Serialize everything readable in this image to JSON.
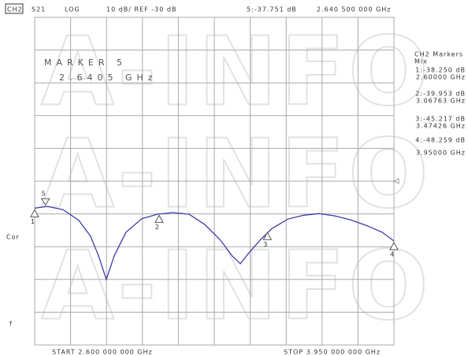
{
  "chart_data": {
    "type": "line",
    "header": {
      "channel": "CH2",
      "param": "S21",
      "format": "LOG",
      "scale": "10 dB/ REF -30 dB",
      "readout": "5:-37.751 dB",
      "readout_freq": "2.640 500 000 GHz"
    },
    "active": {
      "title": "MARKER 5",
      "freq": "2.6405 GHz"
    },
    "marker_panel": {
      "title": "CH2 Markers",
      "subtitle": "Mix",
      "lines": [
        "1:-38.250 dB",
        "2.60000 GHz",
        "2:-39.953 dB",
        "3.06763 GHz",
        "3:-45.217 dB",
        "3.47426 GHz",
        "4:-48.259 dB",
        "3.95000 GHz"
      ]
    },
    "side_labels": [
      "Cor",
      "f"
    ],
    "start": "START 2.600 000 000 GHz",
    "stop": "STOP 3.950 000 000 GHz",
    "watermark": "A-INFO",
    "x": [
      2.6,
      2.647,
      2.707,
      2.766,
      2.81,
      2.84,
      2.869,
      2.899,
      2.943,
      3.002,
      3.061,
      3.12,
      3.18,
      3.239,
      3.298,
      3.342,
      3.373,
      3.403,
      3.447,
      3.491,
      3.551,
      3.61,
      3.669,
      3.728,
      3.787,
      3.846,
      3.906,
      3.95
    ],
    "series": [
      {
        "name": "S21",
        "color": "#3b3ba8",
        "values": [
          -38.25,
          -37.7,
          -38.7,
          -42.0,
          -46.8,
          -52.8,
          -60.0,
          -52.8,
          -45.6,
          -41.5,
          -40.1,
          -39.6,
          -40.1,
          -43.2,
          -48.0,
          -52.8,
          -55.2,
          -52.1,
          -48.0,
          -44.5,
          -41.6,
          -40.4,
          -39.9,
          -40.6,
          -41.8,
          -43.5,
          -45.6,
          -48.26
        ]
      }
    ],
    "markers": [
      {
        "label": "1",
        "x": 2.6,
        "value": -38.25,
        "pointing": "up"
      },
      {
        "label": "2",
        "x": 3.06763,
        "value": -39.953,
        "pointing": "up"
      },
      {
        "label": "3",
        "x": 3.47426,
        "value": -45.217,
        "pointing": "up"
      },
      {
        "label": "4",
        "x": 3.95,
        "value": -48.259,
        "pointing": "up"
      },
      {
        "label": "5",
        "x": 2.6405,
        "value": -37.751,
        "pointing": "down"
      }
    ],
    "xlim": [
      2.6,
      3.95
    ],
    "xticks": [
      2.6,
      2.735,
      2.87,
      3.005,
      3.14,
      3.275,
      3.41,
      3.545,
      3.68,
      3.815,
      3.95
    ],
    "ylim": [
      -80,
      20
    ],
    "yticks": [
      -80,
      -70,
      -60,
      -50,
      -40,
      -30,
      -20,
      -10,
      0,
      10,
      20
    ],
    "grid": true
  }
}
